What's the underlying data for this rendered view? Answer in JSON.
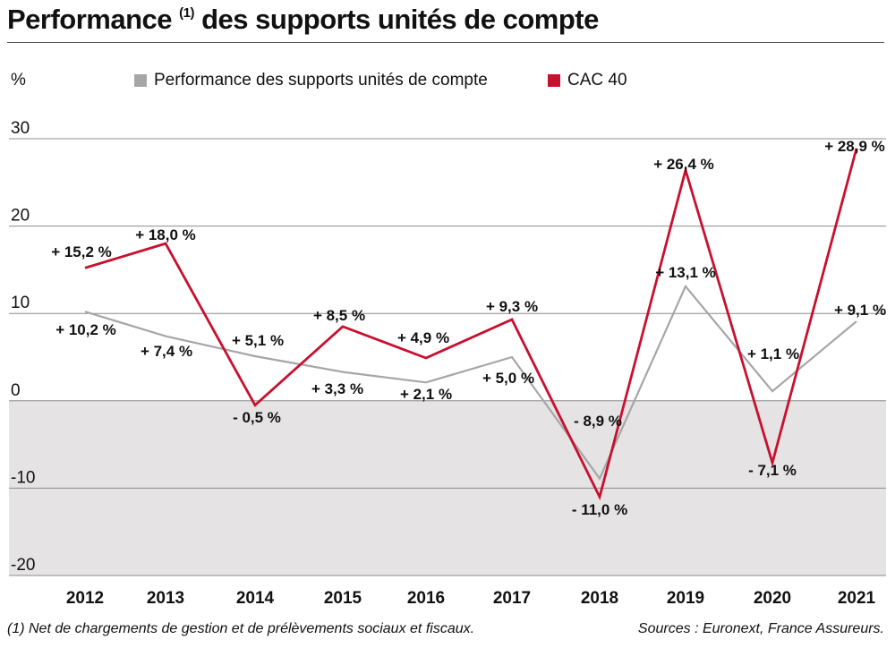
{
  "title": {
    "main": "Performance",
    "sup": "(1)",
    "rest": "des supports unités de compte"
  },
  "unit_label": "%",
  "legend": [
    {
      "label": "Performance des supports unités de compte",
      "color": "#a6a6a6"
    },
    {
      "label": "CAC 40",
      "color": "#c8102e"
    }
  ],
  "footnote": "(1) Net de chargements de gestion et de prélèvements sociaux et fiscaux.",
  "sources": "Sources : Euronext, France Assureurs.",
  "chart_data": {
    "type": "line",
    "title": "Performance (1) des supports unités de compte",
    "ylabel": "%",
    "ylim": [
      -20,
      30
    ],
    "yticks": [
      "30",
      "20",
      "10",
      "0",
      "-10",
      "-20"
    ],
    "categories": [
      "2012",
      "2013",
      "2014",
      "2015",
      "2016",
      "2017",
      "2018",
      "2019",
      "2020",
      "2021"
    ],
    "series": [
      {
        "name": "Performance des supports unités de compte",
        "color": "#a6a6a6",
        "values": [
          10.2,
          7.4,
          5.1,
          3.3,
          2.1,
          5.0,
          -8.9,
          13.1,
          1.1,
          9.1
        ],
        "labels": [
          "+ 10,2 %",
          "+ 7,4 %",
          "+ 5,1 %",
          "+ 3,3 %",
          "+ 2,1 %",
          "+ 5,0 %",
          "- 8,9 %",
          "+ 13,1 %",
          "+ 1,1 %",
          "+ 9,1 %"
        ]
      },
      {
        "name": "CAC 40",
        "color": "#c8102e",
        "values": [
          15.2,
          18.0,
          -0.5,
          8.5,
          4.9,
          9.3,
          -11.0,
          26.4,
          -7.1,
          28.9
        ],
        "labels": [
          "+ 15,2 %",
          "+ 18,0 %",
          "- 0,5 %",
          "+ 8,5 %",
          "+ 4,9 %",
          "+ 9,3 %",
          "- 11,0 %",
          "+ 26,4 %",
          "- 7,1 %",
          "+ 28,9 %"
        ]
      }
    ],
    "negative_band_color": "#e5e3e4",
    "grid": true
  }
}
